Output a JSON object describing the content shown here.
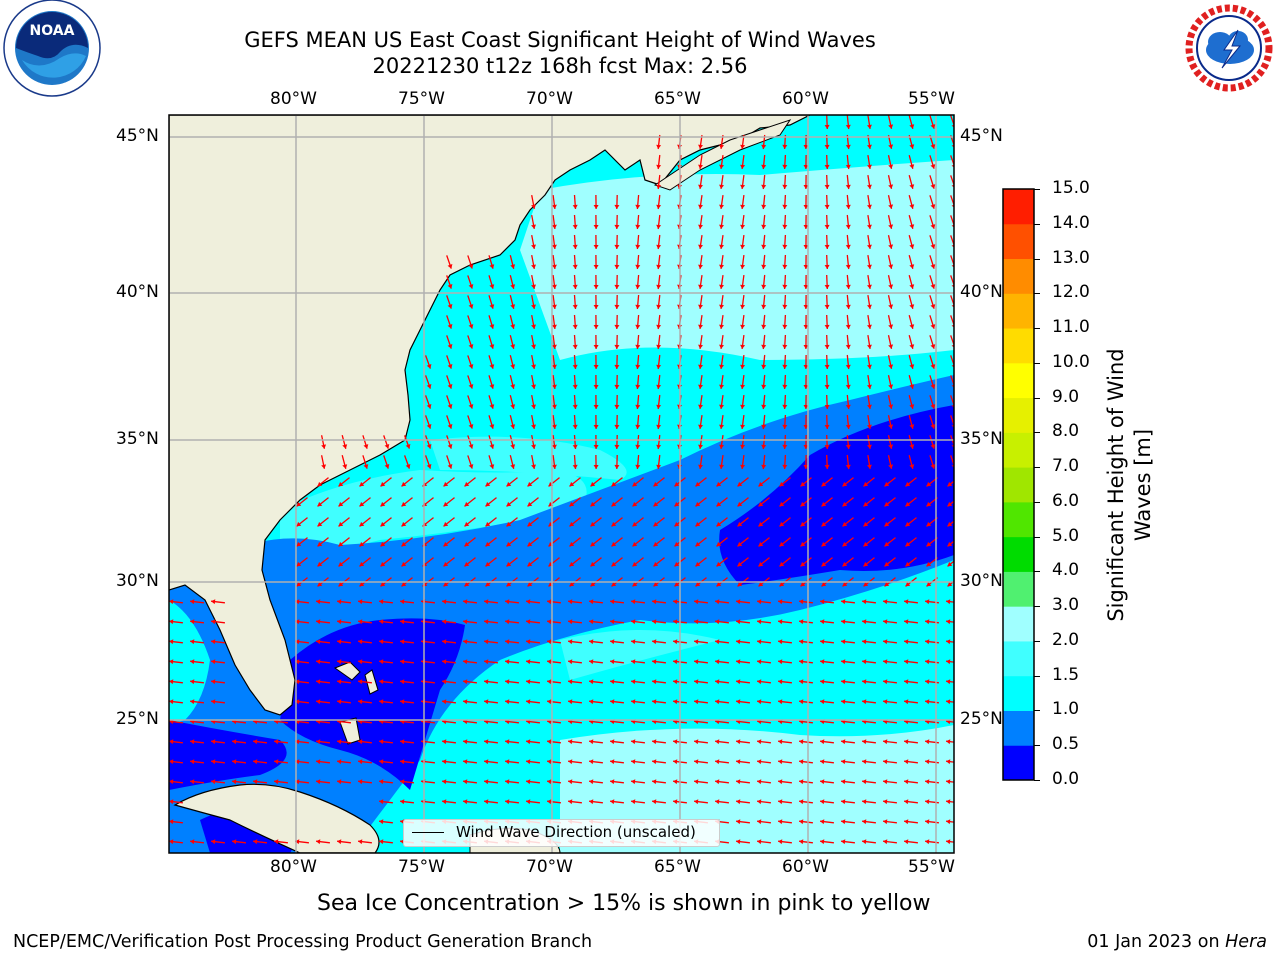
{
  "header": {
    "title_line1": "GEFS MEAN US East Coast Significant Height of Wind Waves",
    "title_line2": "20221230 t12z 168h fcst   Max: 2.56"
  },
  "logos": {
    "left": {
      "name": "noaa-logo",
      "text": "NOAA"
    },
    "right": {
      "name": "nws-logo",
      "text": "NATIONAL WEATHER SERVICE"
    }
  },
  "map": {
    "lon_labels": [
      "80°W",
      "75°W",
      "70°W",
      "65°W",
      "60°W",
      "55°W"
    ],
    "lat_labels": [
      "45°N",
      "40°N",
      "35°N",
      "30°N",
      "25°N"
    ],
    "legend_label": "Wind Wave Direction (unscaled)",
    "arrow_color": "#ff0000",
    "land_color": "#efefdc"
  },
  "colorbar": {
    "label": "Significant Height of Wind Waves [m]",
    "ticks": [
      "0.0",
      "0.5",
      "1.0",
      "1.5",
      "2.0",
      "3.0",
      "4.0",
      "5.0",
      "6.0",
      "7.0",
      "8.0",
      "9.0",
      "10.0",
      "11.0",
      "12.0",
      "13.0",
      "14.0",
      "15.0"
    ],
    "colors": [
      "#0000ff",
      "#0080ff",
      "#00ffff",
      "#40ffff",
      "#a0ffff",
      "#50f070",
      "#00dc00",
      "#50e600",
      "#a0e600",
      "#c8f000",
      "#e6f000",
      "#ffff00",
      "#ffdc00",
      "#ffb400",
      "#ff8c00",
      "#ff5000",
      "#ff1e00"
    ]
  },
  "footer": {
    "ice_note": "Sea Ice Concentration > 15% is shown in pink to yellow",
    "branch": "NCEP/EMC/Verification Post Processing Product Generation Branch",
    "date_prefix": "01 Jan 2023 on",
    "machine": "Hera"
  }
}
